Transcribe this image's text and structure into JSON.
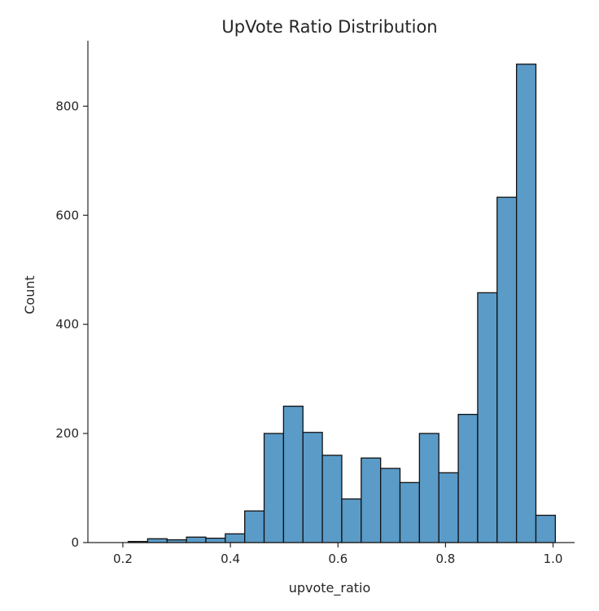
{
  "chart_data": {
    "type": "bar",
    "title": "UpVote Ratio Distribution",
    "xlabel": "upvote_ratio",
    "ylabel": "Count",
    "bin_edges": [
      0.21,
      0.2461,
      0.2822,
      0.3183,
      0.3544,
      0.3905,
      0.4266,
      0.4627,
      0.4988,
      0.5349,
      0.571,
      0.6071,
      0.6432,
      0.6793,
      0.7154,
      0.7515,
      0.7876,
      0.8237,
      0.8598,
      0.8959,
      0.932,
      0.9681,
      1.0042
    ],
    "values": [
      2,
      7,
      5,
      10,
      8,
      16,
      58,
      200,
      250,
      202,
      160,
      80,
      155,
      136,
      110,
      200,
      128,
      235,
      458,
      633,
      877,
      50
    ],
    "xlim": [
      0.135,
      1.04
    ],
    "ylim": [
      0,
      920
    ],
    "xticks": [
      "0.2",
      "0.4",
      "0.6",
      "0.8",
      "1.0"
    ],
    "yticks": [
      "0",
      "200",
      "400",
      "600",
      "800"
    ],
    "grid": false,
    "colors": {
      "bar_fill": "#5a9bc8",
      "bar_edge": "#111111",
      "axis": "#262626"
    }
  }
}
